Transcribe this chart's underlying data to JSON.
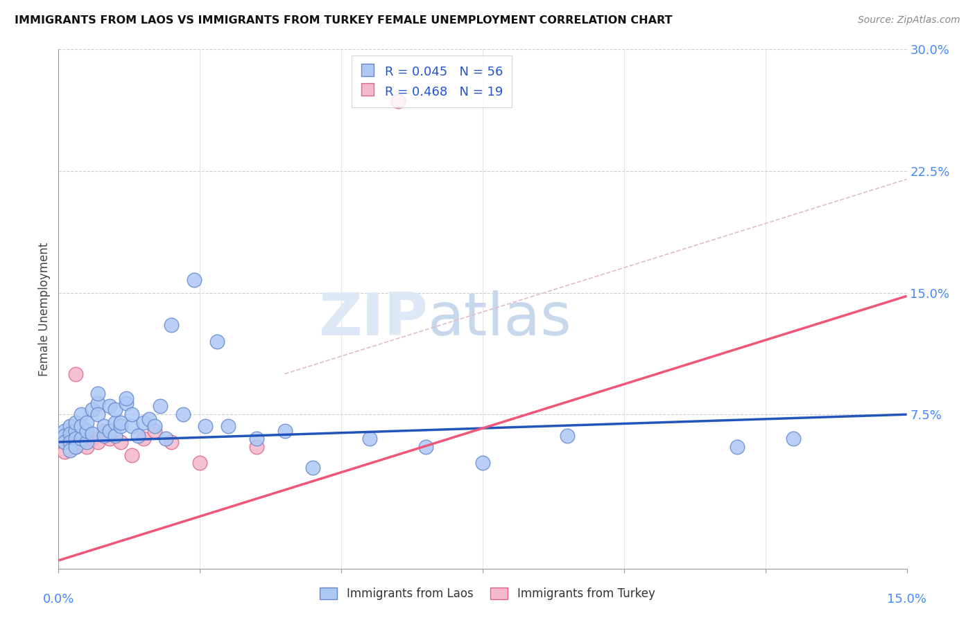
{
  "title": "IMMIGRANTS FROM LAOS VS IMMIGRANTS FROM TURKEY FEMALE UNEMPLOYMENT CORRELATION CHART",
  "source": "Source: ZipAtlas.com",
  "ylabel": "Female Unemployment",
  "xmin": 0.0,
  "xmax": 0.15,
  "ymin": -0.02,
  "ymax": 0.3,
  "laos_color": "#adc8f5",
  "turkey_color": "#f5b8cc",
  "laos_edge": "#6688cc",
  "turkey_edge": "#dd6688",
  "laos_line_color": "#2255bb",
  "turkey_line_color": "#ee5577",
  "dash_line_color": "#ddbbcc",
  "laos_R": 0.045,
  "laos_N": 56,
  "turkey_R": 0.468,
  "turkey_N": 19,
  "laos_x": [
    0.001,
    0.001,
    0.001,
    0.002,
    0.002,
    0.002,
    0.002,
    0.003,
    0.003,
    0.003,
    0.003,
    0.004,
    0.004,
    0.004,
    0.005,
    0.005,
    0.005,
    0.006,
    0.006,
    0.007,
    0.007,
    0.007,
    0.008,
    0.008,
    0.009,
    0.009,
    0.01,
    0.01,
    0.01,
    0.011,
    0.011,
    0.012,
    0.012,
    0.013,
    0.013,
    0.014,
    0.015,
    0.016,
    0.017,
    0.018,
    0.019,
    0.02,
    0.022,
    0.024,
    0.026,
    0.028,
    0.03,
    0.035,
    0.04,
    0.045,
    0.055,
    0.065,
    0.075,
    0.09,
    0.12,
    0.13
  ],
  "laos_y": [
    0.065,
    0.062,
    0.058,
    0.068,
    0.063,
    0.058,
    0.053,
    0.065,
    0.07,
    0.06,
    0.055,
    0.06,
    0.075,
    0.068,
    0.058,
    0.065,
    0.07,
    0.063,
    0.078,
    0.082,
    0.075,
    0.088,
    0.062,
    0.068,
    0.065,
    0.08,
    0.062,
    0.07,
    0.078,
    0.068,
    0.07,
    0.082,
    0.085,
    0.068,
    0.075,
    0.062,
    0.07,
    0.072,
    0.068,
    0.08,
    0.06,
    0.13,
    0.075,
    0.158,
    0.068,
    0.12,
    0.068,
    0.06,
    0.065,
    0.042,
    0.06,
    0.055,
    0.045,
    0.062,
    0.055,
    0.06
  ],
  "turkey_x": [
    0.001,
    0.001,
    0.002,
    0.003,
    0.003,
    0.004,
    0.005,
    0.006,
    0.007,
    0.008,
    0.009,
    0.011,
    0.013,
    0.015,
    0.017,
    0.02,
    0.025,
    0.035,
    0.06
  ],
  "turkey_y": [
    0.058,
    0.052,
    0.06,
    0.055,
    0.1,
    0.058,
    0.055,
    0.06,
    0.058,
    0.065,
    0.06,
    0.058,
    0.05,
    0.06,
    0.065,
    0.058,
    0.045,
    0.055,
    0.268
  ],
  "laos_line_x": [
    0.0,
    0.15
  ],
  "laos_line_y": [
    0.058,
    0.075
  ],
  "turkey_line_x": [
    0.0,
    0.15
  ],
  "turkey_line_y": [
    -0.015,
    0.148
  ],
  "dash_line_x": [
    0.04,
    0.15
  ],
  "dash_line_y": [
    0.1,
    0.22
  ],
  "background_color": "#ffffff",
  "grid_color": "#cccccc",
  "ytick_vals": [
    0.075,
    0.15,
    0.225,
    0.3
  ],
  "ytick_labels": [
    "7.5%",
    "15.0%",
    "22.5%",
    "30.0%"
  ]
}
